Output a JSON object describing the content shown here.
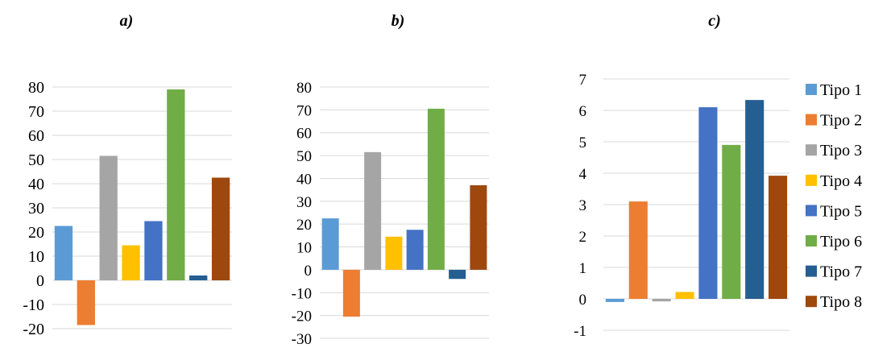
{
  "colors": {
    "Tipo 1": "#5B9BD5",
    "Tipo 2": "#ED7D31",
    "Tipo 3": "#A5A5A5",
    "Tipo 4": "#FFC000",
    "Tipo 5": "#4472C4",
    "Tipo 6": "#70AD47",
    "Tipo 7": "#255E91",
    "Tipo 8": "#9E480E"
  },
  "legend": {
    "position": "right",
    "items": [
      "Tipo 1",
      "Tipo 2",
      "Tipo 3",
      "Tipo 4",
      "Tipo 5",
      "Tipo 6",
      "Tipo 7",
      "Tipo 8"
    ]
  },
  "chart_data": [
    {
      "type": "bar",
      "panel_label": "a)",
      "categories": [
        "Tipo 1",
        "Tipo 2",
        "Tipo 3",
        "Tipo 4",
        "Tipo 5",
        "Tipo 6",
        "Tipo 7",
        "Tipo 8"
      ],
      "values": [
        22.5,
        -18.5,
        51.5,
        14.5,
        24.5,
        79,
        2,
        42.5
      ],
      "ylim": [
        -20,
        80
      ],
      "yticks": [
        -20,
        -10,
        0,
        10,
        20,
        30,
        40,
        50,
        60,
        70,
        80
      ],
      "grid": true
    },
    {
      "type": "bar",
      "panel_label": "b)",
      "categories": [
        "Tipo 1",
        "Tipo 2",
        "Tipo 3",
        "Tipo 4",
        "Tipo 5",
        "Tipo 6",
        "Tipo 7",
        "Tipo 8"
      ],
      "values": [
        22.5,
        -20.5,
        51.5,
        14.5,
        17.5,
        70.5,
        -4,
        37
      ],
      "ylim": [
        -30,
        80
      ],
      "yticks": [
        -30,
        -20,
        -10,
        0,
        10,
        20,
        30,
        40,
        50,
        60,
        70,
        80
      ],
      "grid": true
    },
    {
      "type": "bar",
      "panel_label": "c)",
      "categories": [
        "Tipo 1",
        "Tipo 2",
        "Tipo 3",
        "Tipo 4",
        "Tipo 5",
        "Tipo 6",
        "Tipo 7",
        "Tipo 8"
      ],
      "values": [
        -0.1,
        3.1,
        -0.08,
        0.22,
        6.1,
        4.9,
        6.33,
        3.92
      ],
      "ylim": [
        -1,
        7
      ],
      "yticks": [
        -1,
        0,
        1,
        2,
        3,
        4,
        5,
        6,
        7
      ],
      "grid": true
    }
  ]
}
